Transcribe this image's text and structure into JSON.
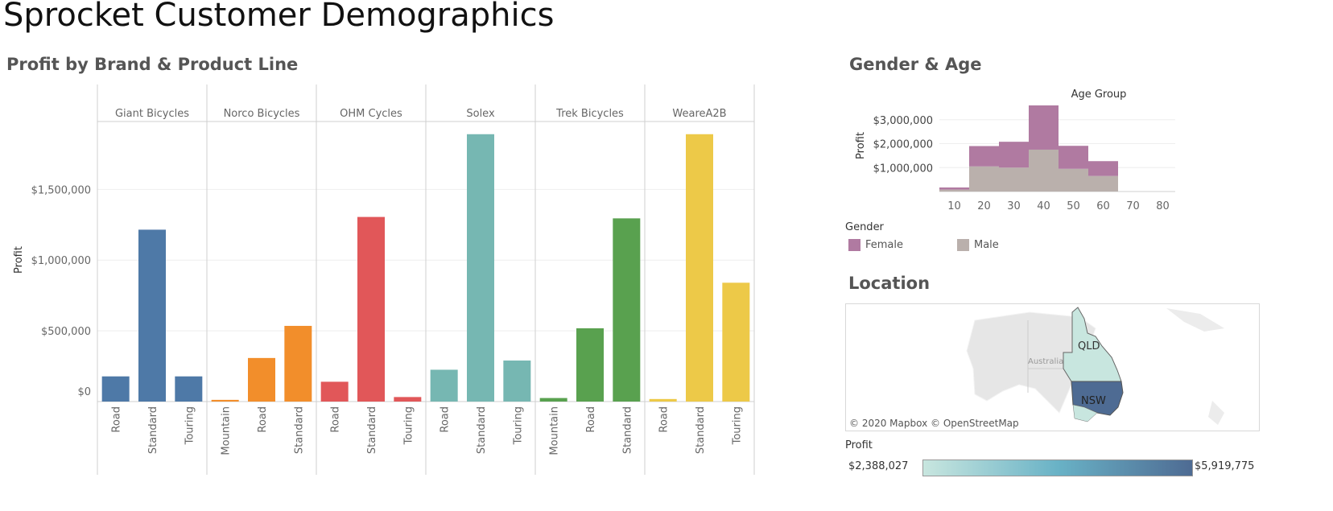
{
  "dashboard": {
    "title": "Sprocket Customer Demographics"
  },
  "sections": {
    "profit": "Profit by Brand & Product Line",
    "gender_age": "Gender & Age",
    "location": "Location"
  },
  "chart_data": [
    {
      "type": "bar",
      "title": "Profit by Brand & Product Line",
      "ylabel": "Profit",
      "ylim": [
        0,
        1900000
      ],
      "yticks": [
        0,
        500000,
        1000000,
        1500000
      ],
      "ytick_labels": [
        "$0",
        "$500,000",
        "$1,000,000",
        "$1,500,000"
      ],
      "panels": [
        {
          "brand": "Giant Bicycles",
          "color": "#4e79a7",
          "categories": [
            "Road",
            "Standard",
            "Touring"
          ],
          "values": [
            178000,
            1215000,
            178000
          ]
        },
        {
          "brand": "Norco Bicycles",
          "color": "#f28e2b",
          "categories": [
            "Mountain",
            "Road",
            "Standard"
          ],
          "values": [
            12000,
            308000,
            535000
          ]
        },
        {
          "brand": "OHM Cycles",
          "color": "#e15759",
          "categories": [
            "Road",
            "Standard",
            "Touring"
          ],
          "values": [
            140000,
            1305000,
            32000
          ]
        },
        {
          "brand": "Solex",
          "color": "#76b7b2",
          "categories": [
            "Road",
            "Standard",
            "Touring"
          ],
          "values": [
            225000,
            1890000,
            290000
          ]
        },
        {
          "brand": "Trek Bicycles",
          "color": "#59a14f",
          "categories": [
            "Mountain",
            "Road",
            "Standard"
          ],
          "values": [
            25000,
            518000,
            1295000
          ]
        },
        {
          "brand": "WeareA2B",
          "color": "#edc948",
          "categories": [
            "Road",
            "Standard",
            "Touring"
          ],
          "values": [
            18000,
            1890000,
            840000
          ]
        }
      ]
    },
    {
      "type": "bar",
      "stacked": true,
      "title": "Age Group",
      "ylabel": "Profit",
      "categories": [
        "10",
        "20",
        "30",
        "40",
        "50",
        "60",
        "70",
        "80"
      ],
      "ylim": [
        0,
        3700000
      ],
      "yticks": [
        1000000,
        2000000,
        3000000
      ],
      "ytick_labels": [
        "$1,000,000",
        "$2,000,000",
        "$3,000,000"
      ],
      "series": [
        {
          "name": "Male",
          "color": "#bab0ac",
          "values": [
            80000,
            1050000,
            1000000,
            1750000,
            950000,
            650000,
            0,
            0
          ]
        },
        {
          "name": "Female",
          "color": "#b07aa1",
          "values": [
            90000,
            850000,
            1080000,
            1850000,
            960000,
            620000,
            0,
            0
          ]
        }
      ]
    },
    {
      "type": "map",
      "region_labels": [
        "QLD",
        "NSW"
      ],
      "country_label": "Australia",
      "attribution": "© 2020 Mapbox © OpenStreetMap",
      "color_legend": {
        "title": "Profit",
        "min": "$2,388,027",
        "max": "$5,919,775",
        "colors": [
          "#c8e6df",
          "#69b2c6",
          "#4e6b93"
        ]
      }
    }
  ],
  "gender_legend": {
    "title": "Gender",
    "items": [
      {
        "label": "Female",
        "color": "#b07aa1"
      },
      {
        "label": "Male",
        "color": "#bab0ac"
      }
    ]
  }
}
